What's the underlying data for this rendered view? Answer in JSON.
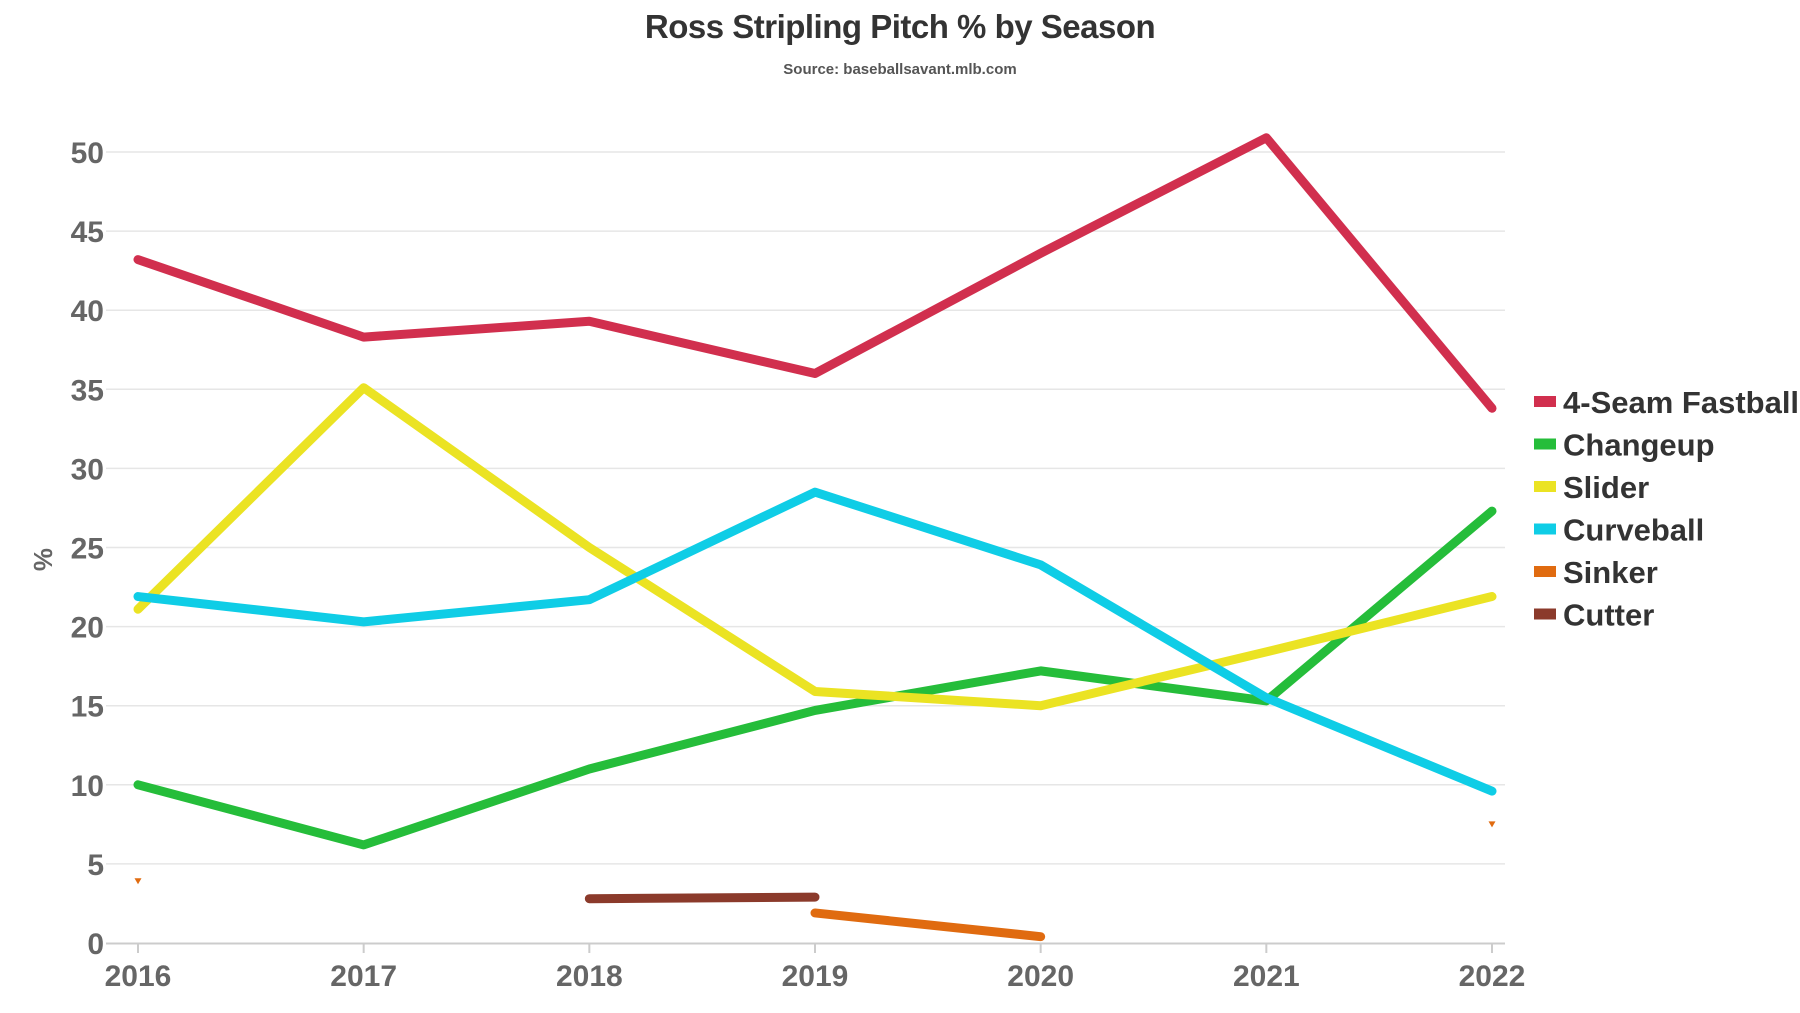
{
  "chart_data": {
    "type": "line",
    "title": "Ross Stripling Pitch % by Season",
    "subtitle": "Source: baseballsavant.mlb.com",
    "xlabel": "",
    "ylabel": "%",
    "x": [
      2016,
      2017,
      2018,
      2019,
      2020,
      2021,
      2022
    ],
    "x_tick_labels": [
      "2016",
      "2017",
      "2018",
      "2019",
      "2020",
      "2021",
      "2022"
    ],
    "ylim": [
      0,
      50
    ],
    "y_ticks": [
      0,
      5,
      10,
      15,
      20,
      25,
      30,
      35,
      40,
      45,
      50
    ],
    "y_tick_labels": [
      "0",
      "5",
      "10",
      "15",
      "20",
      "25",
      "30",
      "35",
      "40",
      "45",
      "50"
    ],
    "grid": true,
    "legend_position": "right",
    "series": [
      {
        "name": "4-Seam Fastball",
        "color": "#d12f4e",
        "values": [
          43.2,
          38.3,
          39.3,
          36.0,
          43.6,
          50.9,
          33.8
        ]
      },
      {
        "name": "Changeup",
        "color": "#25bd3a",
        "values": [
          10.0,
          6.2,
          11.0,
          14.7,
          17.2,
          15.3,
          27.3
        ]
      },
      {
        "name": "Slider",
        "color": "#ebe323",
        "values": [
          21.1,
          35.1,
          25.0,
          15.9,
          15.0,
          18.4,
          21.9
        ]
      },
      {
        "name": "Curveball",
        "color": "#0fcde6",
        "values": [
          21.9,
          20.3,
          21.7,
          28.5,
          23.9,
          15.5,
          9.6
        ]
      },
      {
        "name": "Sinker",
        "color": "#e06b10",
        "values": [
          3.9,
          null,
          null,
          1.9,
          0.4,
          null,
          7.5
        ]
      },
      {
        "name": "Cutter",
        "color": "#8b3a2b",
        "values": [
          null,
          null,
          2.8,
          2.9,
          null,
          null,
          null
        ]
      }
    ]
  }
}
